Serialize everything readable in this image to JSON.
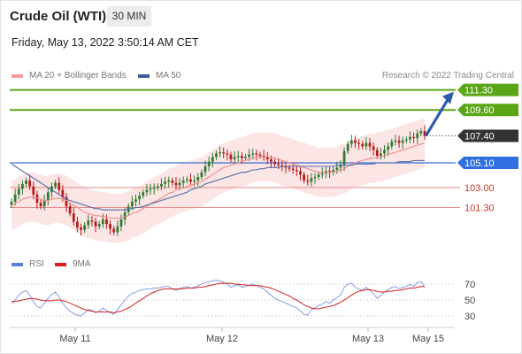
{
  "header": {
    "title": "Crude Oil (WTI)",
    "interval": "30 MIN",
    "datetime": "Friday, May 13, 2022 3:50:14 AM CET"
  },
  "legend": {
    "ma20_label": "MA 20 + Bollinger Bands",
    "ma50_label": "MA 50",
    "credit": "Research © 2022 Trading Central"
  },
  "rsi_legend": {
    "rsi_label": "RSI",
    "ma_label": "9MA"
  },
  "colors": {
    "support_resistance": "#e88a8a",
    "target": "#5aa516",
    "pivot": "#3a6fd8",
    "candle_up": "#2e7d32",
    "candle_down": "#b71c1c",
    "ma20": "#f08a8a",
    "ma50": "#4e6fa6",
    "band_fill": "#fbdcdc",
    "rsi": "#7a95e0",
    "rsi_ma": "#d42020",
    "arrow": "#2f5aa8"
  },
  "chart_data": [
    {
      "type": "candlestick",
      "title": "Crude Oil (WTI)",
      "timeframe": "30 MIN",
      "x_ticks": [
        "May 11",
        "May 12",
        "May 13",
        "May 15"
      ],
      "ylim": [
        97.5,
        111.8
      ],
      "last_price": 107.4,
      "levels": [
        {
          "label": "111.30",
          "value": 111.3,
          "kind": "target"
        },
        {
          "label": "109.60",
          "value": 109.6,
          "kind": "target"
        },
        {
          "label": "107.40",
          "value": 107.4,
          "kind": "last"
        },
        {
          "label": "105.10",
          "value": 105.1,
          "kind": "pivot"
        },
        {
          "label": "103.00",
          "value": 103.0,
          "kind": "support"
        },
        {
          "label": "101.30",
          "value": 101.3,
          "kind": "support"
        }
      ],
      "close": [
        101.8,
        102.4,
        102.9,
        103.3,
        103.6,
        103.1,
        102.4,
        101.7,
        101.4,
        101.9,
        102.6,
        103.1,
        103.4,
        102.8,
        102.2,
        101.4,
        100.8,
        100.1,
        99.6,
        99.4,
        99.8,
        100.2,
        100.1,
        99.7,
        99.9,
        100.3,
        99.9,
        99.5,
        99.2,
        99.7,
        100.3,
        100.9,
        101.4,
        101.8,
        102.0,
        102.3,
        102.6,
        102.8,
        102.9,
        103.0,
        103.1,
        103.3,
        103.5,
        103.6,
        103.4,
        103.2,
        103.4,
        103.6,
        103.7,
        103.5,
        103.6,
        103.9,
        104.3,
        104.8,
        105.2,
        105.6,
        105.9,
        106.0,
        105.9,
        105.8,
        105.4,
        105.6,
        105.7,
        105.5,
        105.6,
        105.8,
        105.9,
        105.8,
        105.7,
        105.6,
        105.4,
        105.2,
        105.0,
        104.9,
        104.8,
        104.7,
        104.6,
        104.5,
        104.4,
        104.1,
        103.6,
        103.5,
        103.8,
        103.9,
        104.1,
        104.2,
        104.4,
        104.3,
        104.5,
        104.7,
        104.9,
        106.1,
        106.7,
        107.0,
        106.8,
        106.7,
        106.5,
        106.8,
        106.5,
        106.2,
        105.7,
        105.9,
        106.2,
        106.5,
        106.9,
        107.0,
        106.8,
        107.0,
        107.1,
        107.3,
        107.2,
        107.6,
        107.8,
        107.4
      ],
      "ma20": [
        101.5,
        101.6,
        101.8,
        102.0,
        102.1,
        102.2,
        102.2,
        102.1,
        102.0,
        101.9,
        101.9,
        102.0,
        102.1,
        102.1,
        102.0,
        101.9,
        101.7,
        101.5,
        101.3,
        101.1,
        100.9,
        100.8,
        100.7,
        100.6,
        100.6,
        100.5,
        100.5,
        100.4,
        100.4,
        100.4,
        100.4,
        100.5,
        100.6,
        100.8,
        100.9,
        101.0,
        101.2,
        101.4,
        101.6,
        101.8,
        101.9,
        102.1,
        102.3,
        102.5,
        102.6,
        102.8,
        102.9,
        103.0,
        103.1,
        103.2,
        103.3,
        103.4,
        103.5,
        103.7,
        103.9,
        104.1,
        104.3,
        104.5,
        104.7,
        104.8,
        104.9,
        105.0,
        105.1,
        105.2,
        105.3,
        105.4,
        105.5,
        105.6,
        105.6,
        105.6,
        105.6,
        105.6,
        105.5,
        105.4,
        105.3,
        105.2,
        105.1,
        105.0,
        104.9,
        104.8,
        104.7,
        104.6,
        104.5,
        104.4,
        104.3,
        104.3,
        104.3,
        104.3,
        104.3,
        104.4,
        104.5,
        104.6,
        104.8,
        105.0,
        105.1,
        105.2,
        105.3,
        105.4,
        105.5,
        105.5,
        105.6,
        105.6,
        105.7,
        105.8,
        105.9,
        106.0,
        106.1,
        106.2,
        106.3,
        106.4,
        106.5,
        106.6,
        106.7,
        106.8
      ],
      "ma50": [
        105.0,
        104.8,
        104.6,
        104.4,
        104.2,
        104.0,
        103.8,
        103.6,
        103.4,
        103.2,
        103.0,
        102.8,
        102.6,
        102.4,
        102.2,
        102.0,
        101.9,
        101.8,
        101.7,
        101.6,
        101.5,
        101.4,
        101.3,
        101.2,
        101.2,
        101.1,
        101.1,
        101.1,
        101.1,
        101.1,
        101.1,
        101.1,
        101.2,
        101.2,
        101.3,
        101.3,
        101.4,
        101.5,
        101.6,
        101.7,
        101.8,
        101.9,
        102.0,
        102.1,
        102.2,
        102.3,
        102.4,
        102.5,
        102.6,
        102.8,
        102.9,
        103.0,
        103.1,
        103.3,
        103.4,
        103.5,
        103.6,
        103.7,
        103.8,
        103.9,
        104.0,
        104.1,
        104.2,
        104.3,
        104.3,
        104.4,
        104.5,
        104.5,
        104.6,
        104.6,
        104.7,
        104.7,
        104.7,
        104.7,
        104.8,
        104.8,
        104.8,
        104.8,
        104.8,
        104.8,
        104.8,
        104.8,
        104.8,
        104.8,
        104.8,
        104.8,
        104.8,
        104.8,
        104.8,
        104.9,
        104.9,
        104.9,
        104.9,
        104.9,
        105.0,
        105.0,
        105.0,
        105.0,
        105.0,
        105.0,
        105.1,
        105.1,
        105.1,
        105.1,
        105.1,
        105.1,
        105.2,
        105.2,
        105.2,
        105.2,
        105.3,
        105.3,
        105.3,
        105.3
      ]
    },
    {
      "type": "line",
      "title": "RSI",
      "ylim": [
        20,
        80
      ],
      "y_ticks": [
        70,
        50,
        30
      ],
      "rsi": [
        45,
        50,
        56,
        60,
        62,
        56,
        48,
        42,
        40,
        46,
        52,
        57,
        60,
        54,
        46,
        40,
        36,
        33,
        31,
        30,
        34,
        38,
        37,
        34,
        36,
        40,
        37,
        34,
        32,
        38,
        44,
        50,
        55,
        58,
        60,
        62,
        63,
        64,
        64,
        65,
        65,
        66,
        67,
        67,
        64,
        62,
        64,
        66,
        67,
        65,
        66,
        68,
        70,
        72,
        73,
        74,
        75,
        74,
        72,
        70,
        66,
        68,
        69,
        66,
        67,
        69,
        70,
        68,
        66,
        64,
        60,
        56,
        52,
        50,
        48,
        46,
        44,
        42,
        40,
        36,
        32,
        31,
        38,
        40,
        43,
        45,
        48,
        46,
        50,
        53,
        56,
        66,
        70,
        71,
        66,
        64,
        62,
        66,
        62,
        58,
        52,
        56,
        60,
        63,
        66,
        67,
        64,
        66,
        67,
        70,
        67,
        72,
        73,
        66
      ],
      "rsi_ma": [
        48,
        48,
        49,
        50,
        51,
        52,
        52,
        51,
        50,
        49,
        49,
        49,
        50,
        50,
        49,
        48,
        46,
        44,
        42,
        40,
        38,
        37,
        36,
        35,
        35,
        35,
        35,
        35,
        34,
        35,
        36,
        38,
        40,
        43,
        46,
        49,
        52,
        55,
        58,
        60,
        62,
        63,
        64,
        64,
        64,
        64,
        64,
        64,
        65,
        65,
        65,
        66,
        66,
        67,
        68,
        69,
        70,
        71,
        71,
        71,
        71,
        70,
        70,
        69,
        69,
        68,
        68,
        68,
        68,
        67,
        66,
        65,
        63,
        61,
        59,
        57,
        55,
        52,
        50,
        47,
        44,
        42,
        40,
        39,
        39,
        40,
        41,
        42,
        43,
        45,
        47,
        50,
        53,
        56,
        59,
        61,
        62,
        63,
        63,
        62,
        61,
        60,
        60,
        61,
        61,
        62,
        62,
        63,
        64,
        65,
        65,
        66,
        67,
        67
      ]
    }
  ]
}
